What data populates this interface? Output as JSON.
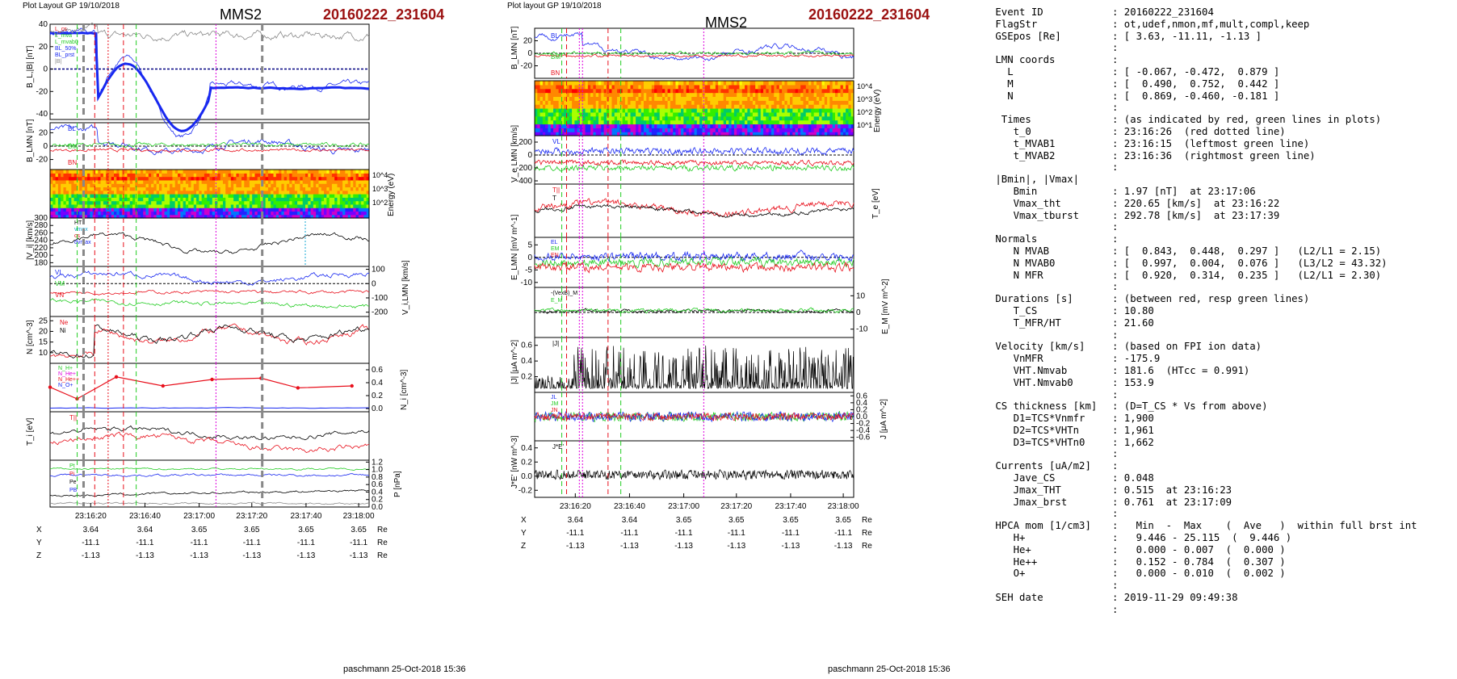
{
  "colors": {
    "red": "#e8101c",
    "green": "#22cc22",
    "blue": "#1828f0",
    "magenta": "#dd00dd",
    "black": "#000000",
    "gray": "#888888",
    "title_red": "#9b1111",
    "cyan": "#17a9d6"
  },
  "left": {
    "header": "Plot Layout GP 19/10/2018",
    "title": "MMS2",
    "event": "20160222_231604",
    "footer": "paschmann 25-Oct-2018 15:36",
    "time_ticks": [
      "23:16:20",
      "23:16:40",
      "23:17:00",
      "23:17:20",
      "23:17:40",
      "23:18:00"
    ],
    "pos_rows": [
      {
        "axis": "X",
        "vals": [
          "3.64",
          "3.64",
          "3.65",
          "3.65",
          "3.65",
          "3.65"
        ],
        "unit": "Re"
      },
      {
        "axis": "Y",
        "vals": [
          "-11.1",
          "-11.1",
          "-11.1",
          "-11.1",
          "-11.1",
          "-11.1"
        ],
        "unit": "Re"
      },
      {
        "axis": "Z",
        "vals": [
          "-1.13",
          "-1.13",
          "-1.13",
          "-1.13",
          "-1.13",
          "-1.13"
        ],
        "unit": "Re"
      }
    ]
  },
  "middle": {
    "header": "Plot layout GP 19/10/2018",
    "title": "MMS2",
    "event": "20160222_231604",
    "footer": "paschmann 25-Oct-2018 15:36",
    "time_ticks": [
      "23:16:20",
      "23:16:40",
      "23:17:00",
      "23:17:20",
      "23:17:40",
      "23:18:00"
    ],
    "pos_rows": [
      {
        "axis": "X",
        "vals": [
          "3.64",
          "3.64",
          "3.65",
          "3.65",
          "3.65",
          "3.65"
        ],
        "unit": "Re"
      },
      {
        "axis": "Y",
        "vals": [
          "-11.1",
          "-11.1",
          "-11.1",
          "-11.1",
          "-11.1",
          "-11.1"
        ],
        "unit": "Re"
      },
      {
        "axis": "Z",
        "vals": [
          "-1.13",
          "-1.13",
          "-1.13",
          "-1.13",
          "-1.13",
          "-1.13"
        ],
        "unit": "Re"
      }
    ]
  },
  "chart_data": [
    {
      "type": "line",
      "panel": "left-1",
      "ylabel": "B_L,|B| [nT]",
      "ylim": [
        -45,
        40
      ],
      "yticks": [
        40,
        20,
        0,
        -20,
        -40
      ],
      "legend": [
        "L_cs",
        "L_mva",
        "L_mvab0",
        "BL_50%",
        "BL_prst",
        "|B|"
      ]
    },
    {
      "type": "line",
      "panel": "left-2",
      "ylabel": "B_LMN [nT]",
      "ylim": [
        -35,
        35
      ],
      "yticks": [
        20,
        0,
        -20
      ],
      "series": [
        "BL",
        "BM",
        "BN"
      ]
    },
    {
      "type": "heatmap",
      "panel": "left-3",
      "ylabel": "Energy (eV)",
      "yticks": [
        "10^4",
        "10^3",
        "10^2"
      ]
    },
    {
      "type": "line",
      "panel": "left-4",
      "ylabel": "|V_i| [km/s]",
      "ylim": [
        170,
        300
      ],
      "yticks": [
        300,
        280,
        260,
        240,
        220,
        200,
        180
      ],
      "legend": [
        "HT",
        "vmax",
        "cs",
        "dvmax"
      ]
    },
    {
      "type": "line",
      "panel": "left-5",
      "ylabel": "V_i,LMN [km/s]",
      "ylim": [
        -230,
        120
      ],
      "yticks": [
        100,
        0,
        -100,
        -200
      ],
      "series": [
        "VL",
        "VM",
        "VN"
      ]
    },
    {
      "type": "line",
      "panel": "left-6",
      "ylabel": "N [cm^-3]",
      "ylim": [
        5,
        27
      ],
      "yticks": [
        25,
        20,
        15,
        10
      ],
      "series": [
        "Ne",
        "Ni"
      ]
    },
    {
      "type": "line",
      "panel": "left-7",
      "ylabel": "N_i [cm^-3]",
      "ylim": [
        -0.05,
        0.7
      ],
      "yticks": [
        0.6,
        0.4,
        0.2,
        0.0
      ],
      "series": [
        "N_H+",
        "N_He+",
        "N_He++",
        "N_O+"
      ],
      "x": [
        0,
        11,
        27,
        46,
        66,
        86,
        101,
        123
      ],
      "values": [
        0.33,
        0.15,
        0.49,
        0.35,
        0.45,
        0.47,
        0.32,
        0.35
      ]
    },
    {
      "type": "line",
      "panel": "left-8",
      "ylabel": "T_i [eV]",
      "series": [
        "T_par",
        "T_perp"
      ]
    },
    {
      "type": "line",
      "panel": "left-9",
      "ylabel": "P [nPa]",
      "ylim": [
        0,
        1.25
      ],
      "yticks": [
        1.2,
        1.0,
        0.8,
        0.6,
        0.4,
        0.2,
        0.0
      ],
      "series": [
        "Pt",
        "Pi",
        "Pe",
        "PB"
      ]
    },
    {
      "type": "line",
      "panel": "mid-1",
      "ylabel": "B_LMN [nT]",
      "ylim": [
        -40,
        40
      ],
      "yticks": [
        20,
        0,
        -20
      ],
      "series": [
        "BL",
        "BM",
        "BN"
      ]
    },
    {
      "type": "heatmap",
      "panel": "mid-2",
      "ylabel": "Energy (eV)",
      "yticks": [
        "10^4",
        "10^3",
        "10^2",
        "10^1"
      ]
    },
    {
      "type": "line",
      "panel": "mid-3",
      "ylabel": "V_e LMN [km/s]",
      "ylim": [
        -450,
        300
      ],
      "yticks": [
        200,
        0,
        -200,
        -400
      ],
      "series": [
        "VL",
        "VM",
        "VN"
      ]
    },
    {
      "type": "line",
      "panel": "mid-4",
      "ylabel": "T_e [eV]",
      "series": [
        "T_par",
        "T"
      ]
    },
    {
      "type": "line",
      "panel": "mid-5",
      "ylabel": "E_LMN [mV m^-1]",
      "ylim": [
        -12,
        8
      ],
      "yticks": [
        5,
        0,
        -5,
        -10
      ],
      "series": [
        "EL",
        "EM",
        "EN"
      ]
    },
    {
      "type": "line",
      "panel": "mid-6",
      "ylabel": "E_M [mV m^-2]",
      "ylim": [
        -15,
        15
      ],
      "yticks": [
        10,
        0,
        -10
      ],
      "series": [
        "-(VexB)_M",
        "E_M"
      ]
    },
    {
      "type": "line",
      "panel": "mid-7",
      "ylabel": "|J| [μA m^-2]",
      "ylim": [
        0,
        0.7
      ],
      "yticks": [
        0.6,
        0.4,
        0.2
      ],
      "series": [
        "|J|"
      ]
    },
    {
      "type": "line",
      "panel": "mid-8",
      "ylabel": "J [μA m^-2]",
      "ylim": [
        -0.7,
        0.7
      ],
      "yticks": [
        0.6,
        0.4,
        0.2,
        0.0,
        -0.2,
        -0.4,
        -0.6
      ],
      "series": [
        "J_L",
        "J_M",
        "J_N"
      ]
    },
    {
      "type": "line",
      "panel": "mid-9",
      "ylabel": "J*E' [nW m^-3]",
      "ylim": [
        -0.3,
        0.5
      ],
      "yticks": [
        0.4,
        0.2,
        0.0,
        -0.2
      ],
      "series": [
        "J*E'"
      ]
    }
  ],
  "info_lines": [
    [
      "Event ID",
      ": 20160222_231604"
    ],
    [
      "FlagStr",
      ": ot,udef,nmon,mf,mult,compl,keep"
    ],
    [
      "GSEpos [Re]",
      ": [ 3.63, -11.11, -1.13 ]"
    ],
    [
      "",
      ":"
    ],
    [
      "LMN coords",
      ":"
    ],
    [
      "  L",
      ": [ -0.067, -0.472,  0.879 ]"
    ],
    [
      "  M",
      ": [  0.490,  0.752,  0.442 ]"
    ],
    [
      "  N",
      ": [  0.869, -0.460, -0.181 ]"
    ],
    [
      "",
      ":"
    ],
    [
      " Times",
      ": (as indicated by red, green lines in plots)"
    ],
    [
      "   t_0",
      ": 23:16:26  (red dotted line)"
    ],
    [
      "   t_MVAB1",
      ": 23:16:15  (leftmost green line)"
    ],
    [
      "   t_MVAB2",
      ": 23:16:36  (rightmost green line)"
    ],
    [
      "",
      ":"
    ],
    [
      "|Bmin|, |Vmax|",
      ""
    ],
    [
      "   Bmin",
      ": 1.97 [nT]  at 23:17:06"
    ],
    [
      "   Vmax_tht",
      ": 220.65 [km/s]  at 23:16:22"
    ],
    [
      "   Vmax_tburst",
      ": 292.78 [km/s]  at 23:17:39"
    ],
    [
      "",
      ":"
    ],
    [
      "Normals",
      ":"
    ],
    [
      "   N MVAB",
      ": [  0.843,  0.448,  0.297 ]   (L2/L1 = 2.15)"
    ],
    [
      "   N MVAB0",
      ": [  0.997,  0.004,  0.076 ]   (L3/L2 = 43.32)"
    ],
    [
      "   N MFR",
      ": [  0.920,  0.314,  0.235 ]   (L2/L1 = 2.30)"
    ],
    [
      "",
      ":"
    ],
    [
      "Durations [s]",
      ": (between red, resp green lines)"
    ],
    [
      "   T_CS",
      ": 10.80"
    ],
    [
      "   T_MFR/HT",
      ": 21.60"
    ],
    [
      "",
      ":"
    ],
    [
      "Velocity [km/s]",
      ": (based on FPI ion data)"
    ],
    [
      "   VnMFR",
      ": -175.9"
    ],
    [
      "   VHT.Nmvab",
      ": 181.6  (HTcc = 0.991)"
    ],
    [
      "   VHT.Nmvab0",
      ": 153.9"
    ],
    [
      "",
      ":"
    ],
    [
      "CS thickness [km]",
      ": (D=T_CS * Vs from above)"
    ],
    [
      "   D1=TCS*Vnmfr",
      ": 1,900"
    ],
    [
      "   D2=TCS*VHTn",
      ": 1,961"
    ],
    [
      "   D3=TCS*VHTn0",
      ": 1,662"
    ],
    [
      "",
      ":"
    ],
    [
      "Currents [uA/m2]",
      ":"
    ],
    [
      "   Jave_CS",
      ": 0.048"
    ],
    [
      "   Jmax_THT",
      ": 0.515  at 23:16:23"
    ],
    [
      "   Jmax_brst",
      ": 0.761  at 23:17:09"
    ],
    [
      "",
      ":"
    ],
    [
      "HPCA mom [1/cm3]",
      ":   Min  -  Max    (  Ave   )  within full brst int"
    ],
    [
      "   H+",
      ":   9.446 - 25.115  (  9.446 )"
    ],
    [
      "   He+",
      ":   0.000 - 0.007  (  0.000 )"
    ],
    [
      "   He++",
      ":   0.152 - 0.784  (  0.307 )"
    ],
    [
      "   O+",
      ":   0.000 - 0.010  (  0.002 )"
    ],
    [
      "",
      ":"
    ],
    [
      "SEH date",
      ": 2019-11-29 09:49:38"
    ],
    [
      "",
      ":"
    ]
  ]
}
